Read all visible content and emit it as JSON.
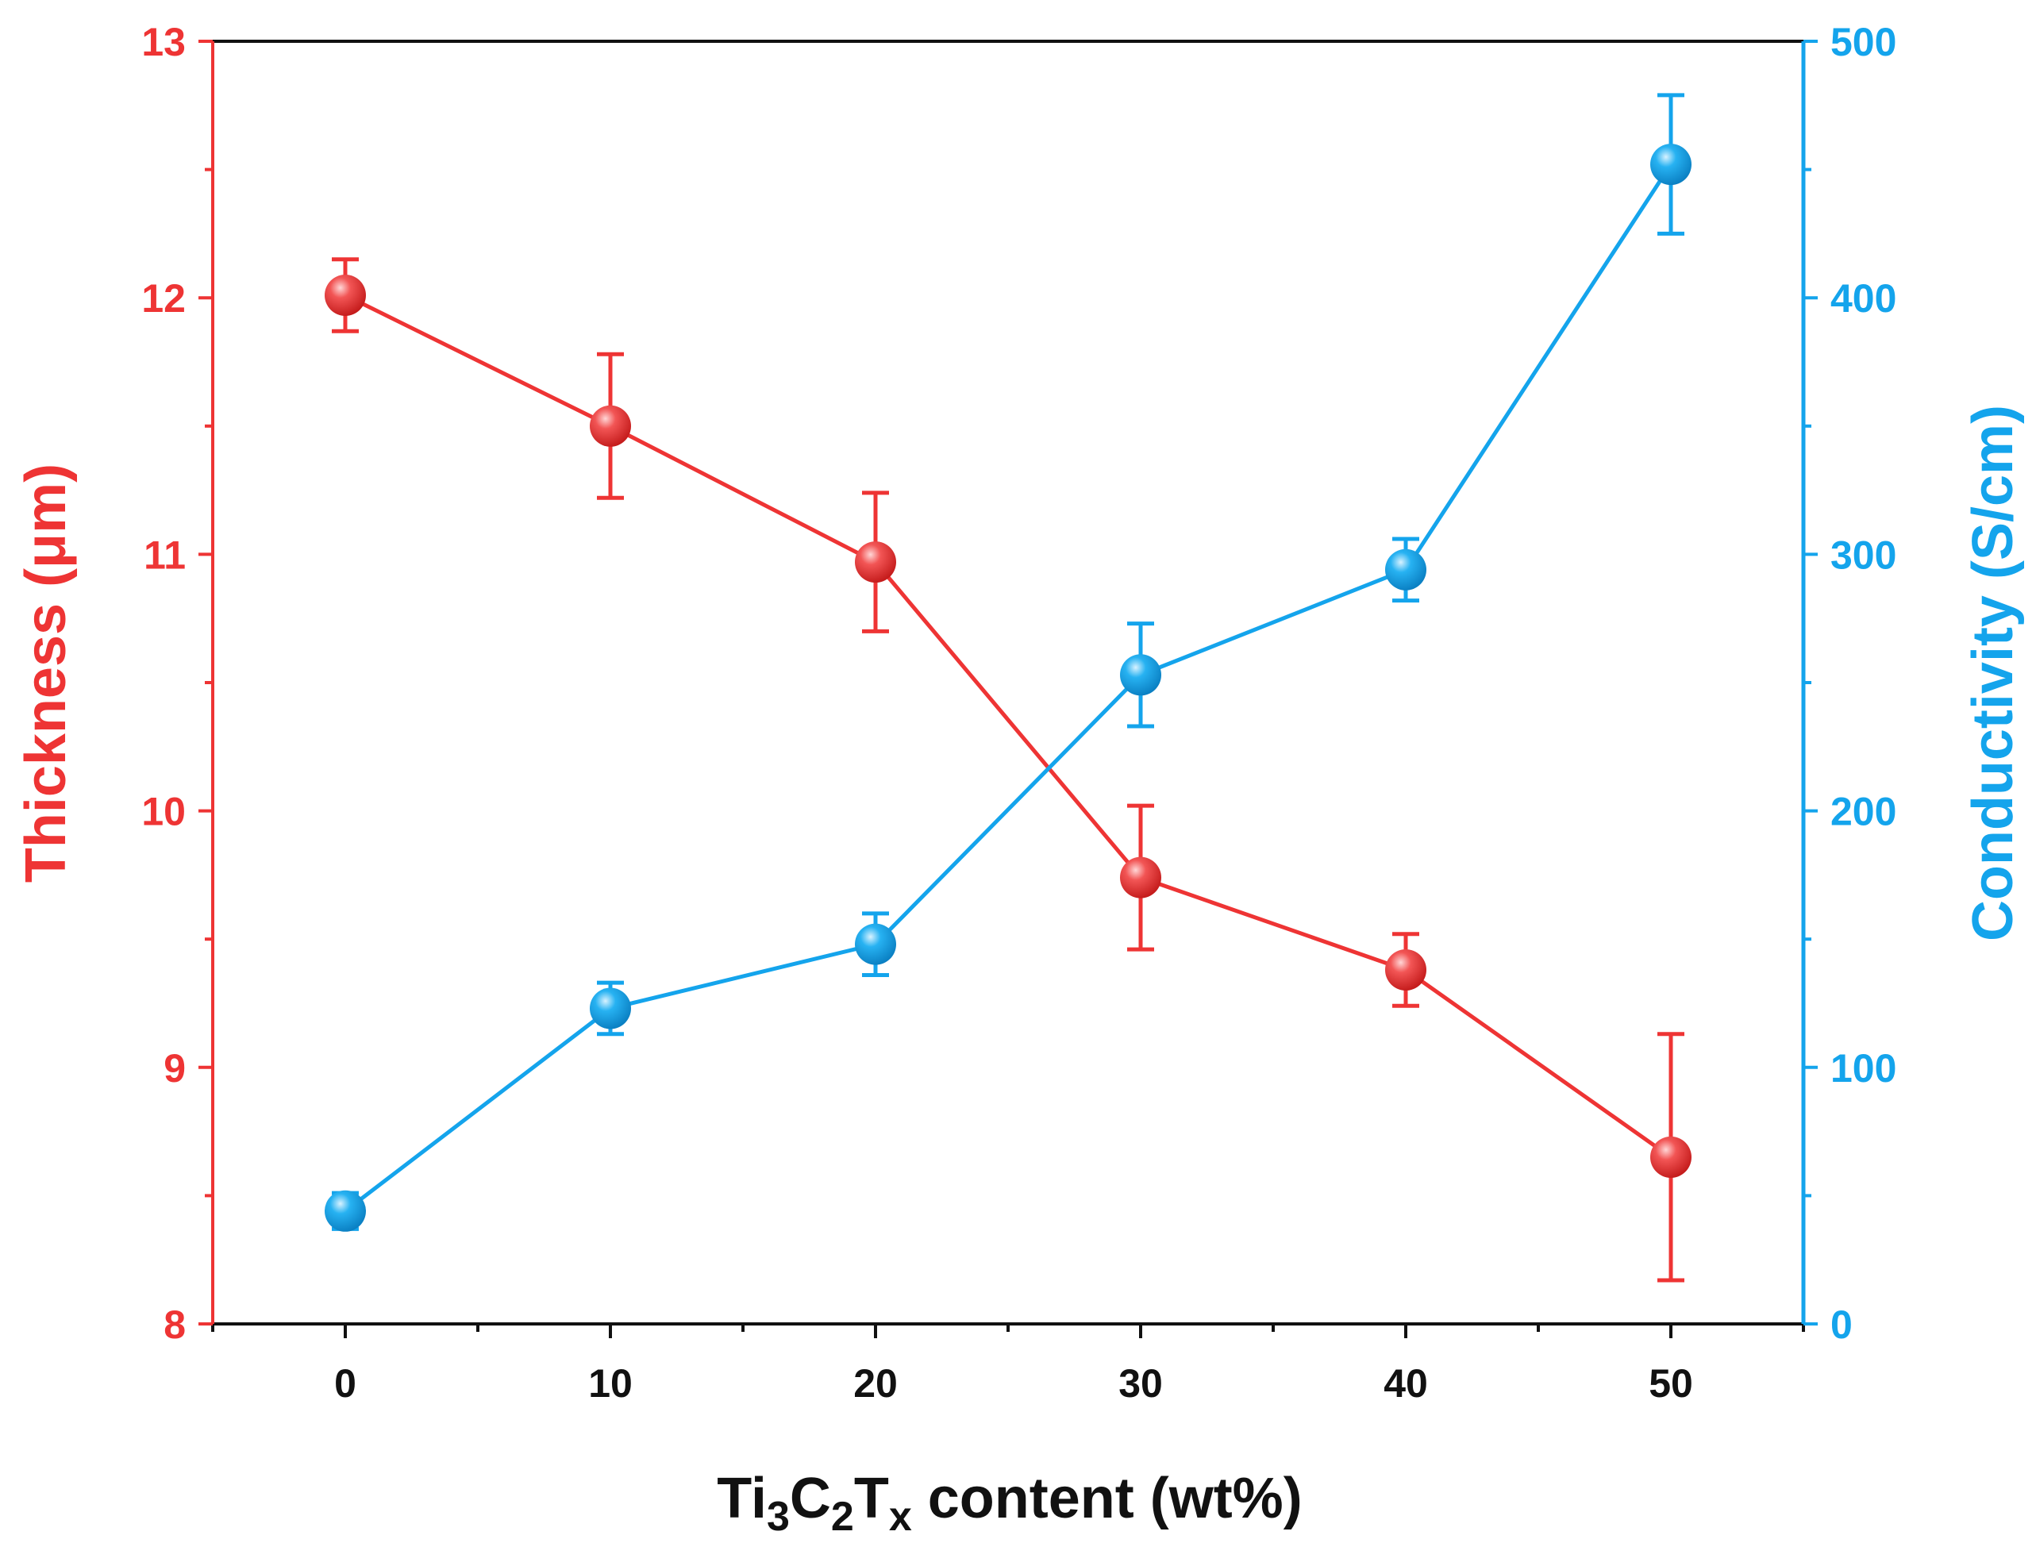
{
  "chart_data": {
    "type": "line",
    "title": "",
    "x": [
      0,
      10,
      20,
      30,
      40,
      50
    ],
    "xlabel": {
      "base": "Ti",
      "sub1": "3",
      "c": "C",
      "sub2": "2",
      "t": "T",
      "sub3": "x",
      "rest": " content (wt%)"
    },
    "xlim": [
      -5,
      55
    ],
    "xticks": [
      "0",
      "10",
      "20",
      "30",
      "40",
      "50"
    ],
    "ylabel_left": "Thickness (μm)",
    "ylim_left": [
      8,
      13
    ],
    "yticks_left": [
      "8",
      "9",
      "10",
      "11",
      "12",
      "13"
    ],
    "ylabel_right": "Conductivity (S/cm)",
    "ylim_right": [
      0,
      500
    ],
    "yticks_right": [
      "0",
      "100",
      "200",
      "300",
      "400",
      "500"
    ],
    "series": [
      {
        "name": "Thickness",
        "axis": "left",
        "color": "#ee3434",
        "values": [
          12.01,
          11.5,
          10.97,
          9.74,
          9.38,
          8.65
        ],
        "err_low": [
          0.14,
          0.28,
          0.27,
          0.28,
          0.14,
          0.48
        ],
        "err_high": [
          0.14,
          0.28,
          0.27,
          0.28,
          0.14,
          0.48
        ]
      },
      {
        "name": "Conductivity",
        "axis": "right",
        "color": "#14a4ec",
        "values": [
          44,
          123,
          148,
          253,
          294,
          452
        ],
        "err_low": [
          7,
          10,
          12,
          20,
          12,
          27
        ],
        "err_high": [
          7,
          10,
          12,
          20,
          12,
          27
        ]
      }
    ],
    "grid": false,
    "legend": "none"
  }
}
